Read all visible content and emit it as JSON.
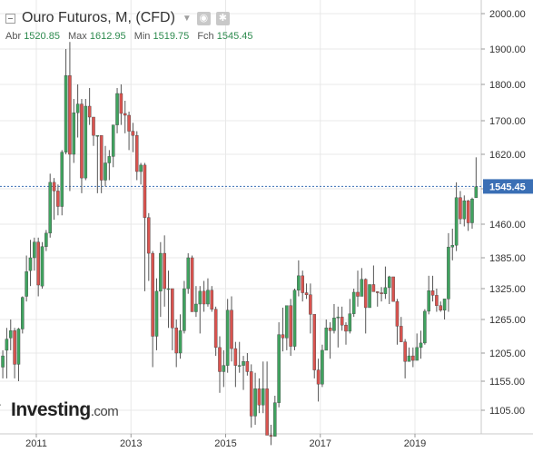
{
  "header": {
    "title": "Ouro Futuros, M, (CFD)",
    "ohlc": [
      {
        "label": "Abr",
        "value": "1520.85"
      },
      {
        "label": "Max",
        "value": "1612.95"
      },
      {
        "label": "Min",
        "value": "1519.75"
      },
      {
        "label": "Fch",
        "value": "1545.45"
      }
    ]
  },
  "logo": {
    "brand": "Investing",
    "suffix": ".com"
  },
  "icons": [
    "collapse-icon",
    "chevron-down-icon",
    "eye-icon",
    "gear-icon"
  ],
  "colors": {
    "up": "#3fa35f",
    "down": "#d9534f",
    "grid": "#e8e8e8",
    "price_line": "#3a6fb5",
    "price_label_bg": "#3a6fb5"
  },
  "chart_data": {
    "type": "candlestick",
    "title": "Ouro Futuros, M, (CFD)",
    "y_ticks": [
      1105,
      1155,
      1205,
      1265,
      1325,
      1385,
      1460,
      1540,
      1620,
      1700,
      1800,
      1900,
      2000
    ],
    "y_tick_labels": [
      "1105.00",
      "1155.00",
      "1205.00",
      "1265.00",
      "1325.00",
      "1385.00",
      "1460.00",
      "1540.00",
      "1620.00",
      "1700.00",
      "1800.00",
      "1900.00",
      "2000.00"
    ],
    "x_labels": [
      "2011",
      "2013",
      "2015",
      "2017",
      "2019"
    ],
    "x_label_years": [
      2011,
      2013,
      2015,
      2017,
      2019
    ],
    "x_range": [
      "2010-01",
      "2020-01"
    ],
    "last_price": 1545.45,
    "last_price_label": "1545.45",
    "grid": true,
    "ohlc_monthly": [
      [
        1118,
        1150,
        1070,
        1080
      ],
      [
        1080,
        1120,
        1070,
        1119
      ],
      [
        1113,
        1150,
        1100,
        1115
      ],
      [
        1180,
        1210,
        1160,
        1200
      ],
      [
        1210,
        1250,
        1160,
        1230
      ],
      [
        1232,
        1265,
        1210,
        1245
      ],
      [
        1245,
        1250,
        1160,
        1185
      ],
      [
        1185,
        1250,
        1155,
        1248
      ],
      [
        1248,
        1310,
        1240,
        1308
      ],
      [
        1310,
        1390,
        1300,
        1358
      ],
      [
        1360,
        1425,
        1330,
        1385
      ],
      [
        1385,
        1430,
        1360,
        1420
      ],
      [
        1420,
        1430,
        1310,
        1332
      ],
      [
        1330,
        1420,
        1325,
        1410
      ],
      [
        1410,
        1447,
        1400,
        1440
      ],
      [
        1440,
        1575,
        1430,
        1555
      ],
      [
        1555,
        1565,
        1470,
        1535
      ],
      [
        1535,
        1550,
        1480,
        1500
      ],
      [
        1500,
        1630,
        1480,
        1625
      ],
      [
        1625,
        1900,
        1620,
        1825
      ],
      [
        1825,
        1920,
        1535,
        1620
      ],
      [
        1620,
        1760,
        1600,
        1722
      ],
      [
        1722,
        1800,
        1660,
        1746
      ],
      [
        1746,
        1760,
        1530,
        1565
      ],
      [
        1565,
        1760,
        1560,
        1740
      ],
      [
        1740,
        1790,
        1690,
        1710
      ],
      [
        1710,
        1710,
        1640,
        1665
      ],
      [
        1665,
        1665,
        1530,
        1665
      ],
      [
        1665,
        1600,
        1530,
        1560
      ],
      [
        1560,
        1640,
        1545,
        1600
      ],
      [
        1600,
        1630,
        1560,
        1615
      ],
      [
        1615,
        1690,
        1590,
        1690
      ],
      [
        1690,
        1790,
        1670,
        1775
      ],
      [
        1775,
        1800,
        1690,
        1720
      ],
      [
        1720,
        1755,
        1670,
        1715
      ],
      [
        1715,
        1725,
        1630,
        1675
      ],
      [
        1675,
        1695,
        1625,
        1665
      ],
      [
        1665,
        1675,
        1560,
        1580
      ],
      [
        1580,
        1600,
        1550,
        1595
      ],
      [
        1595,
        1600,
        1320,
        1475
      ],
      [
        1475,
        1485,
        1340,
        1395
      ],
      [
        1395,
        1400,
        1180,
        1235
      ],
      [
        1235,
        1345,
        1210,
        1320
      ],
      [
        1320,
        1420,
        1270,
        1395
      ],
      [
        1395,
        1435,
        1290,
        1325
      ],
      [
        1325,
        1360,
        1250,
        1325
      ],
      [
        1325,
        1290,
        1210,
        1250
      ],
      [
        1250,
        1265,
        1180,
        1205
      ],
      [
        1205,
        1275,
        1195,
        1245
      ],
      [
        1245,
        1340,
        1240,
        1325
      ],
      [
        1325,
        1395,
        1315,
        1385
      ],
      [
        1385,
        1390,
        1280,
        1280
      ],
      [
        1280,
        1330,
        1270,
        1295
      ],
      [
        1295,
        1330,
        1240,
        1320
      ],
      [
        1320,
        1340,
        1280,
        1295
      ],
      [
        1295,
        1345,
        1290,
        1322
      ],
      [
        1322,
        1330,
        1280,
        1285
      ],
      [
        1285,
        1290,
        1200,
        1215
      ],
      [
        1215,
        1235,
        1135,
        1172
      ],
      [
        1172,
        1210,
        1145,
        1183
      ],
      [
        1183,
        1305,
        1170,
        1283
      ],
      [
        1283,
        1310,
        1190,
        1213
      ],
      [
        1213,
        1225,
        1145,
        1183
      ],
      [
        1183,
        1225,
        1170,
        1183
      ],
      [
        1183,
        1200,
        1140,
        1190
      ],
      [
        1190,
        1205,
        1165,
        1172
      ],
      [
        1172,
        1185,
        1075,
        1095
      ],
      [
        1095,
        1170,
        1080,
        1142
      ],
      [
        1142,
        1160,
        1100,
        1114
      ],
      [
        1114,
        1190,
        1100,
        1142
      ],
      [
        1142,
        1190,
        1110,
        1062
      ],
      [
        1062,
        1080,
        1045,
        1060
      ],
      [
        1060,
        1130,
        1060,
        1118
      ],
      [
        1118,
        1260,
        1110,
        1238
      ],
      [
        1238,
        1288,
        1208,
        1232
      ],
      [
        1232,
        1290,
        1210,
        1292
      ],
      [
        1292,
        1305,
        1200,
        1217
      ],
      [
        1217,
        1325,
        1210,
        1322
      ],
      [
        1322,
        1380,
        1310,
        1350
      ],
      [
        1350,
        1360,
        1300,
        1317
      ],
      [
        1317,
        1335,
        1305,
        1313
      ],
      [
        1313,
        1335,
        1240,
        1275
      ],
      [
        1275,
        1230,
        1160,
        1175
      ],
      [
        1175,
        1195,
        1120,
        1150
      ],
      [
        1150,
        1220,
        1145,
        1210
      ],
      [
        1210,
        1265,
        1210,
        1250
      ],
      [
        1250,
        1260,
        1195,
        1245
      ],
      [
        1245,
        1295,
        1240,
        1268
      ],
      [
        1268,
        1290,
        1215,
        1270
      ],
      [
        1270,
        1290,
        1245,
        1255
      ],
      [
        1255,
        1260,
        1220,
        1244
      ],
      [
        1244,
        1305,
        1240,
        1276
      ],
      [
        1276,
        1325,
        1270,
        1318
      ],
      [
        1318,
        1360,
        1290,
        1310
      ],
      [
        1310,
        1365,
        1310,
        1343
      ],
      [
        1343,
        1345,
        1240,
        1288
      ],
      [
        1288,
        1330,
        1290,
        1333
      ],
      [
        1333,
        1370,
        1330,
        1319
      ],
      [
        1319,
        1320,
        1290,
        1317
      ],
      [
        1317,
        1328,
        1300,
        1315
      ],
      [
        1315,
        1368,
        1305,
        1327
      ],
      [
        1327,
        1350,
        1295,
        1348
      ],
      [
        1348,
        1340,
        1310,
        1300
      ],
      [
        1300,
        1305,
        1220,
        1253
      ],
      [
        1253,
        1270,
        1235,
        1225
      ],
      [
        1225,
        1230,
        1160,
        1190
      ],
      [
        1190,
        1215,
        1190,
        1200
      ],
      [
        1200,
        1215,
        1180,
        1192
      ],
      [
        1192,
        1240,
        1195,
        1215
      ],
      [
        1215,
        1245,
        1195,
        1223
      ],
      [
        1223,
        1285,
        1220,
        1281
      ],
      [
        1281,
        1350,
        1275,
        1321
      ],
      [
        1321,
        1350,
        1300,
        1312
      ],
      [
        1312,
        1325,
        1280,
        1292
      ],
      [
        1292,
        1300,
        1280,
        1283
      ],
      [
        1283,
        1305,
        1265,
        1305
      ],
      [
        1305,
        1440,
        1280,
        1409
      ],
      [
        1409,
        1450,
        1380,
        1413
      ],
      [
        1413,
        1555,
        1400,
        1520
      ],
      [
        1520,
        1535,
        1460,
        1472
      ],
      [
        1472,
        1525,
        1455,
        1513
      ],
      [
        1513,
        1515,
        1445,
        1463
      ],
      [
        1463,
        1520,
        1450,
        1517
      ],
      [
        1520,
        1613,
        1520,
        1545
      ]
    ]
  }
}
